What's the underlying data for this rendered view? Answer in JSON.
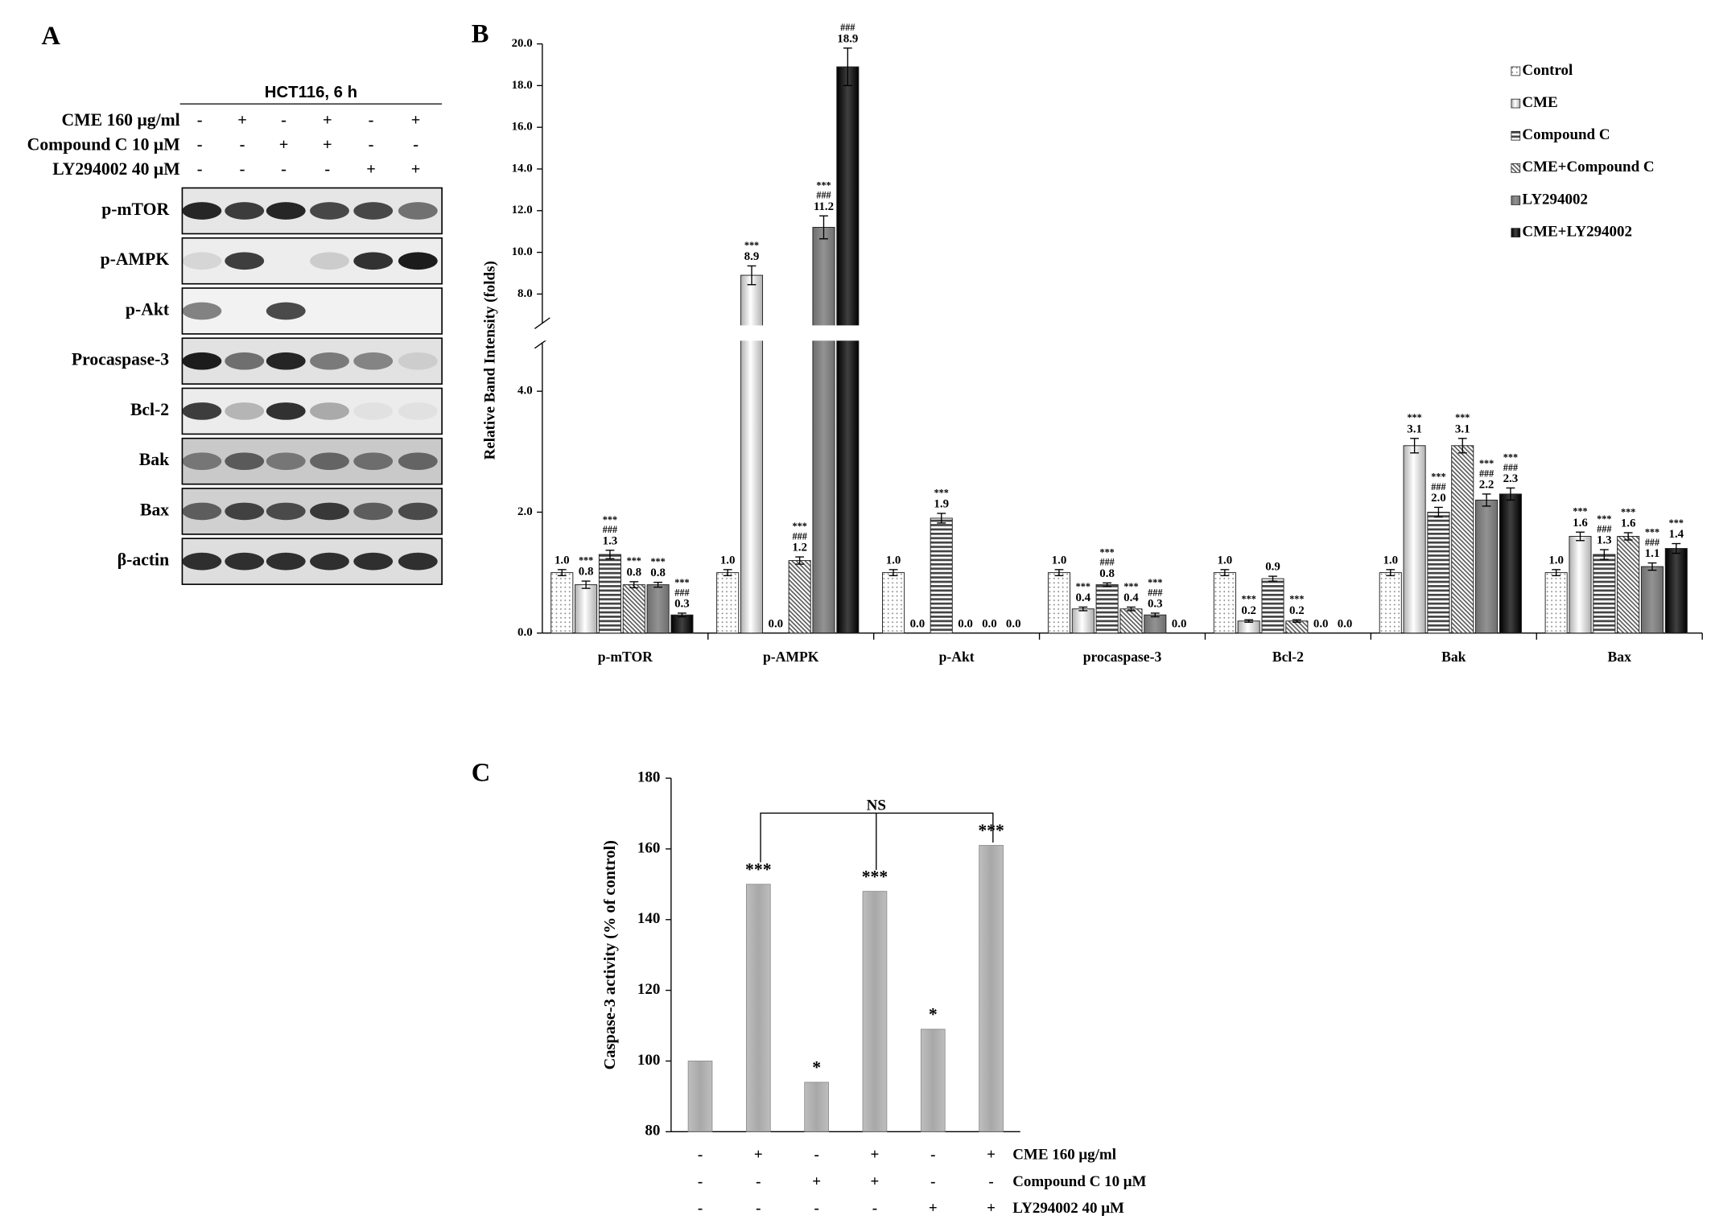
{
  "panel_labels": [
    "A",
    "B",
    "C"
  ],
  "blot": {
    "header": "HCT116, 6 h",
    "conditions": [
      {
        "label": "CME 160 μg/ml",
        "signs": [
          "-",
          "+",
          "-",
          "+",
          "-",
          "+"
        ]
      },
      {
        "label": "Compound C 10 μM",
        "signs": [
          "-",
          "-",
          "+",
          "+",
          "-",
          "-"
        ]
      },
      {
        "label": "LY294002 40 μM",
        "signs": [
          "-",
          "-",
          "-",
          "-",
          "+",
          "+"
        ]
      }
    ],
    "bands": [
      "p-mTOR",
      "p-AMPK",
      "p-Akt",
      "Procaspase-3",
      "Bcl-2",
      "Bak",
      "Bax",
      "β-actin"
    ]
  },
  "chart_data": [
    {
      "type": "bar",
      "y_label": "Relative Band Intensity (folds)",
      "categories": [
        "p-mTOR",
        "p-AMPK",
        "p-Akt",
        "procaspase-3",
        "Bcl-2",
        "Bak",
        "Bax"
      ],
      "ylim_segments": [
        [
          0,
          4.8
        ],
        [
          6.6,
          20
        ]
      ],
      "yticks": [
        {
          "value": 0,
          "label": "0.0"
        },
        {
          "value": 2,
          "label": "2.0"
        },
        {
          "value": 4,
          "label": "4.0"
        },
        {
          "value": 8,
          "label": "8.0"
        },
        {
          "value": 10,
          "label": "10.0"
        },
        {
          "value": 12,
          "label": "12.0"
        },
        {
          "value": 14,
          "label": "14.0"
        },
        {
          "value": 16,
          "label": "16.0"
        },
        {
          "value": 18,
          "label": "18.0"
        },
        {
          "value": 20,
          "label": "20.0"
        }
      ],
      "legend": "upper right",
      "series": [
        {
          "name": "Control",
          "color": "#8a8a8a",
          "pattern": "dots",
          "values": [
            1.0,
            1.0,
            1.0,
            1.0,
            1.0,
            1.0,
            1.0
          ],
          "value_labels": [
            "1.0",
            "1.0",
            "1.0",
            "1.0",
            "1.0",
            "1.0",
            "1.0"
          ],
          "errors": [
            0.05,
            0.05,
            0.05,
            0.05,
            0.05,
            0.05,
            0.05
          ],
          "annotations": [
            null,
            null,
            null,
            null,
            null,
            null,
            null
          ]
        },
        {
          "name": "CME",
          "color": "#b0b0b0",
          "pattern": "light",
          "values": [
            0.8,
            8.9,
            0.0,
            0.4,
            0.2,
            3.1,
            1.6
          ],
          "value_labels": [
            "0.8",
            "8.9",
            "0.0",
            "0.4",
            "0.2",
            "3.1",
            "1.6"
          ],
          "errors": [
            0.06,
            0.45,
            0,
            0.03,
            0.02,
            0.12,
            0.07
          ],
          "annotations": [
            [
              "***"
            ],
            [
              "***"
            ],
            null,
            [
              "***"
            ],
            [
              "***"
            ],
            [
              "***"
            ],
            [
              "***"
            ]
          ]
        },
        {
          "name": "Compound C",
          "color": "#444444",
          "pattern": "hstripes",
          "values": [
            1.3,
            0.0,
            1.9,
            0.8,
            0.9,
            2.0,
            1.3
          ],
          "value_labels": [
            "1.3",
            "0.0",
            "1.9",
            "0.8",
            "0.9",
            "2.0",
            "1.3"
          ],
          "errors": [
            0.07,
            0,
            0.08,
            0.03,
            0.04,
            0.08,
            0.08
          ],
          "annotations": [
            [
              "***",
              "###"
            ],
            null,
            [
              "***"
            ],
            [
              "***",
              "###"
            ],
            null,
            [
              "***",
              "###"
            ],
            [
              "***",
              "###"
            ]
          ]
        },
        {
          "name": "CME+Compound C",
          "color": "#555555",
          "pattern": "diagonal",
          "values": [
            0.8,
            1.2,
            0.0,
            0.4,
            0.2,
            3.1,
            1.6
          ],
          "value_labels": [
            "0.8",
            "1.2",
            "0.0",
            "0.4",
            "0.2",
            "3.1",
            "1.6"
          ],
          "errors": [
            0.05,
            0.06,
            0,
            0.03,
            0.02,
            0.12,
            0.06
          ],
          "annotations": [
            [
              "***"
            ],
            [
              "***",
              "###"
            ],
            null,
            [
              "***"
            ],
            [
              "***"
            ],
            [
              "***"
            ],
            [
              "***"
            ]
          ]
        },
        {
          "name": "LY294002",
          "color": "#6e6e6e",
          "pattern": "solid",
          "values": [
            0.8,
            11.2,
            0.0,
            0.3,
            0.0,
            2.2,
            1.1
          ],
          "value_labels": [
            "0.8",
            "11.2",
            "0.0",
            "0.3",
            "0.0",
            "2.2",
            "1.1"
          ],
          "errors": [
            0.04,
            0.55,
            0,
            0.03,
            0,
            0.1,
            0.06
          ],
          "annotations": [
            [
              "***"
            ],
            [
              "***",
              "###"
            ],
            null,
            [
              "***",
              "###"
            ],
            null,
            [
              "***",
              "###"
            ],
            [
              "***",
              "###"
            ]
          ]
        },
        {
          "name": "CME+LY294002",
          "color": "#000000",
          "pattern": "solid",
          "values": [
            0.3,
            18.9,
            0.0,
            0.0,
            0.0,
            2.3,
            1.4
          ],
          "value_labels": [
            "0.3",
            "18.9",
            "0.0",
            "0.0",
            "0.0",
            "2.3",
            "1.4"
          ],
          "errors": [
            0.03,
            0.9,
            0,
            0,
            0,
            0.1,
            0.08
          ],
          "annotations": [
            [
              "***",
              "###"
            ],
            [
              "###"
            ],
            null,
            null,
            null,
            [
              "***",
              "###"
            ],
            [
              "***"
            ]
          ]
        }
      ]
    },
    {
      "type": "bar",
      "y_label": "Caspase-3  activity  (% of control)",
      "values": [
        100,
        150,
        94,
        148,
        109,
        161
      ],
      "annotations": [
        null,
        "***",
        "*",
        "***",
        "*",
        "***"
      ],
      "color": "#a8a8a8",
      "ylim": [
        80,
        180
      ],
      "yticks": [
        80,
        100,
        120,
        140,
        160,
        180
      ],
      "bracket_label": "NS",
      "conditions": [
        {
          "label": "CME 160 μg/ml",
          "signs": [
            "-",
            "+",
            "-",
            "+",
            "-",
            "+"
          ]
        },
        {
          "label": "Compound C 10 μM",
          "signs": [
            "-",
            "-",
            "+",
            "+",
            "-",
            "-"
          ]
        },
        {
          "label": "LY294002 40 μM",
          "signs": [
            "-",
            "-",
            "-",
            "-",
            "+",
            "+"
          ]
        }
      ]
    }
  ]
}
